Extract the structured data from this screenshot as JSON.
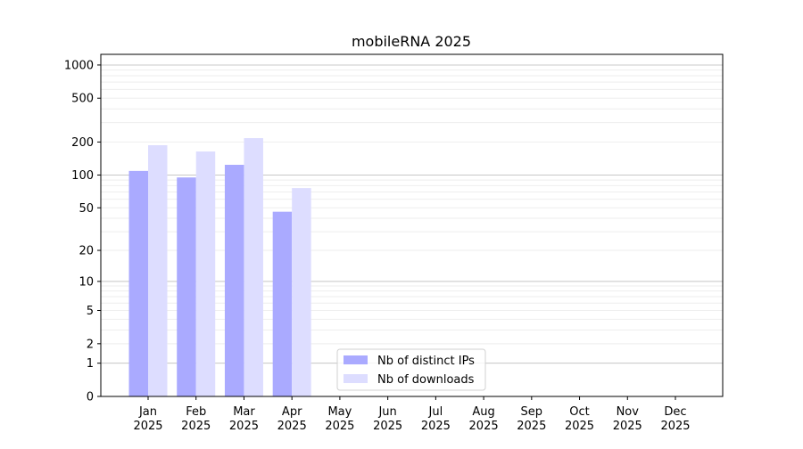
{
  "chart_data": {
    "type": "bar",
    "title": "mobileRNA 2025",
    "xlabel": "",
    "ylabel": "",
    "yscale": "symlog (log10(1+y))",
    "ylim": [
      0,
      1300
    ],
    "yticks": [
      0,
      1,
      2,
      5,
      10,
      20,
      50,
      100,
      200,
      500,
      1000
    ],
    "grid": true,
    "legend_position": "bottom-center",
    "categories": [
      "Jan\n2025",
      "Feb\n2025",
      "Mar\n2025",
      "Apr\n2025",
      "May\n2025",
      "Jun\n2025",
      "Jul\n2025",
      "Aug\n2025",
      "Sep\n2025",
      "Oct\n2025",
      "Nov\n2025",
      "Dec\n2025"
    ],
    "series": [
      {
        "name": "Nb of distinct IPs",
        "color": "#aaaaff",
        "values": [
          109,
          95,
          124,
          46,
          null,
          null,
          null,
          null,
          null,
          null,
          null,
          null
        ]
      },
      {
        "name": "Nb of downloads",
        "color": "#ddddff",
        "values": [
          187,
          164,
          217,
          76,
          null,
          null,
          null,
          null,
          null,
          null,
          null,
          null
        ]
      }
    ]
  }
}
